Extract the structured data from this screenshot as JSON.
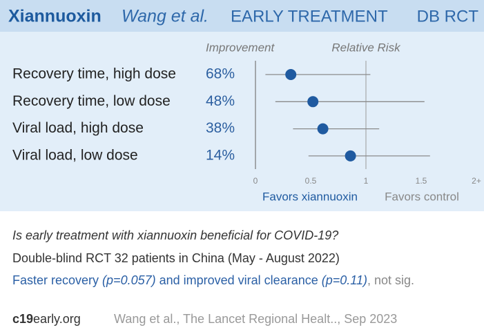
{
  "header": {
    "title": "Xiannuoxin",
    "authors": "Wang et al.",
    "stage": "EARLY TREATMENT",
    "design": "DB RCT"
  },
  "chart_data": {
    "type": "forest",
    "column_titles": [
      "Improvement",
      "Relative Risk"
    ],
    "categories": [
      "Recovery time, high dose",
      "Recovery time, low dose",
      "Viral load, high dose",
      "Viral load, low dose"
    ],
    "improvement": {
      "values": [
        68,
        48,
        38,
        14
      ],
      "value_labels": [
        "68%",
        "48%",
        "38%",
        "14%"
      ]
    },
    "values": [
      0.32,
      0.52,
      0.61,
      0.86
    ],
    "ci_low": [
      0.09,
      0.18,
      0.34,
      0.48
    ],
    "ci_high": [
      1.04,
      1.53,
      1.12,
      1.58
    ],
    "xlim": [
      0,
      2
    ],
    "xticks": [
      0,
      0.5,
      1,
      1.5,
      {
        "value": 2,
        "label": "2+"
      }
    ],
    "reference_line": 1,
    "favors": [
      "Favors xiannuoxin",
      "Favors control"
    ],
    "color": "#1f5aa0",
    "ci_color": "#8a8a8a"
  },
  "summary": {
    "question": "Is early treatment with xiannuoxin beneficial for COVID-19?",
    "details": "Double-blind RCT 32 patients in China (May - August 2022)",
    "result": [
      "Faster recovery ",
      "(p=0.057)",
      " and improved viral clearance ",
      "(p=0.11)",
      ", not sig."
    ]
  },
  "footer": {
    "site_bold": "c19",
    "site_rest": "early.org",
    "citation": "Wang et al., The Lancet Regional Healt.., Sep 2023"
  }
}
